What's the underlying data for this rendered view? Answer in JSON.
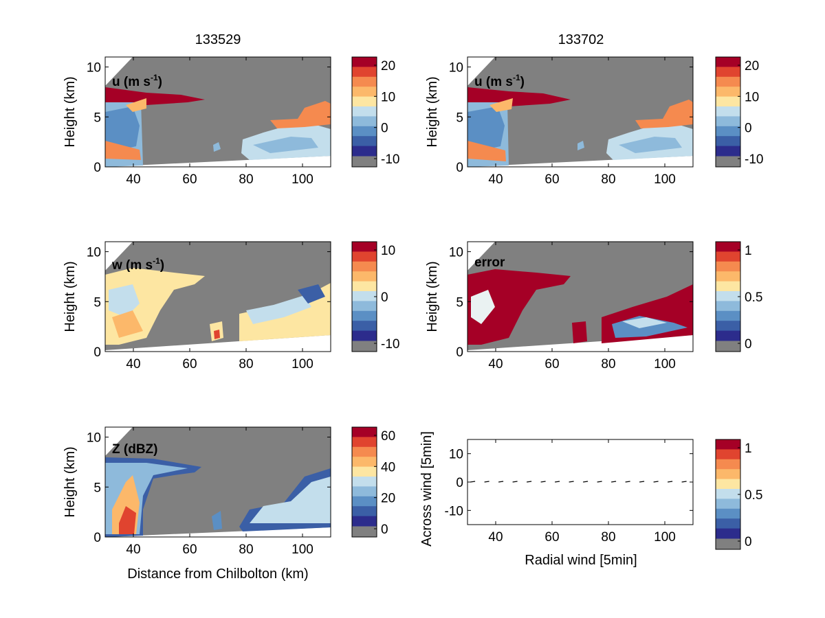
{
  "column_titles": [
    "133529",
    "133702"
  ],
  "chart_data": [
    {
      "type": "heatmap",
      "label": "u (m s-1)",
      "label_parts": {
        "base": "u (m s",
        "sup": "-1",
        "close": ")"
      },
      "ylabel": "Height (km)",
      "xlim": [
        30,
        110
      ],
      "ylim": [
        0,
        11
      ],
      "xticks": [
        "40",
        "60",
        "80",
        "100"
      ],
      "yticks": [
        "0",
        "5",
        "10"
      ],
      "colorbar": {
        "ticks": [
          "20",
          "10",
          "0",
          "-10"
        ],
        "levels": 10
      }
    },
    {
      "type": "heatmap",
      "label": "u (m s-1)",
      "label_parts": {
        "base": "u (m s",
        "sup": "-1",
        "close": ")"
      },
      "ylabel": "Height (km)",
      "xlim": [
        30,
        110
      ],
      "ylim": [
        0,
        11
      ],
      "xticks": [
        "40",
        "60",
        "80",
        "100"
      ],
      "yticks": [
        "0",
        "5",
        "10"
      ],
      "colorbar": {
        "ticks": [
          "20",
          "10",
          "0",
          "-10"
        ],
        "levels": 10
      }
    },
    {
      "type": "heatmap",
      "label": "w (m s-1)",
      "label_parts": {
        "base": "w (m s",
        "sup": "-1",
        "close": ")"
      },
      "ylabel": "Height (km)",
      "xlim": [
        30,
        110
      ],
      "ylim": [
        0,
        11
      ],
      "xticks": [
        "40",
        "60",
        "80",
        "100"
      ],
      "yticks": [
        "0",
        "5",
        "10"
      ],
      "colorbar": {
        "ticks": [
          "10",
          "0",
          "-10"
        ],
        "levels": 10
      }
    },
    {
      "type": "heatmap",
      "label": "error",
      "ylabel": "Height (km)",
      "xlim": [
        30,
        110
      ],
      "ylim": [
        0,
        11
      ],
      "xticks": [
        "40",
        "60",
        "80",
        "100"
      ],
      "yticks": [
        "0",
        "5",
        "10"
      ],
      "colorbar": {
        "ticks": [
          "1",
          "0.5",
          "0"
        ],
        "levels": 10
      }
    },
    {
      "type": "heatmap",
      "label": "Z (dBZ)",
      "ylabel": "Height (km)",
      "xlabel": "Distance from Chilbolton (km)",
      "xlim": [
        30,
        110
      ],
      "ylim": [
        0,
        11
      ],
      "xticks": [
        "40",
        "60",
        "80",
        "100"
      ],
      "yticks": [
        "0",
        "5",
        "10"
      ],
      "colorbar": {
        "ticks": [
          "60",
          "40",
          "20",
          "0"
        ],
        "levels": 10
      }
    },
    {
      "type": "scatter",
      "ylabel": "Across wind [5min]",
      "xlabel": "Radial wind [5min]",
      "xlim": [
        30,
        110
      ],
      "ylim": [
        -15,
        15
      ],
      "xticks": [
        "40",
        "60",
        "80",
        "100"
      ],
      "yticks": [
        "10",
        "0",
        "-10"
      ],
      "x": [
        31,
        36,
        41,
        46,
        51,
        56,
        61,
        66,
        71,
        76,
        81,
        86,
        91,
        96,
        101,
        106
      ],
      "y": [
        0,
        0,
        0,
        0,
        0,
        0,
        0,
        0,
        0,
        0,
        0,
        0,
        0,
        0,
        0,
        0
      ],
      "colorbar": {
        "ticks": [
          "1",
          "0.5",
          "0"
        ],
        "levels": 10
      }
    }
  ],
  "colors": {
    "missing": "#808080",
    "panel_bg": "#ffffff",
    "scale": [
      "#2c2c8c",
      "#3b5fa6",
      "#5b8fc4",
      "#8ebadb",
      "#c3deec",
      "#eaf2f2",
      "#fde6a2",
      "#fcb86a",
      "#f58a4f",
      "#e0442f",
      "#a50026"
    ]
  }
}
